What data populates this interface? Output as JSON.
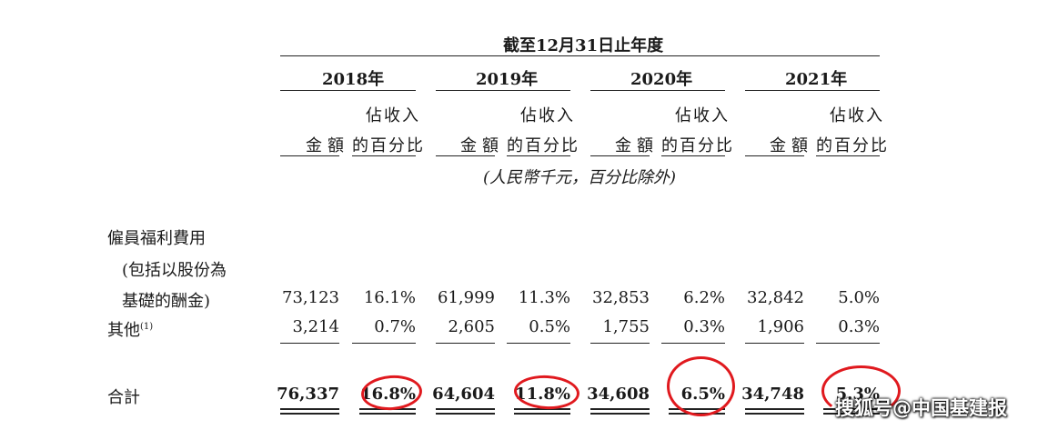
{
  "header": {
    "period_title": "截至12月31日止年度",
    "years": [
      "2018年",
      "2019年",
      "2020年",
      "2021年"
    ],
    "col_amount": "金額",
    "col_pct_line1": "佔收入",
    "col_pct_line2": "的百分比",
    "unit_note": "(人民幣千元，百分比除外)"
  },
  "rows": {
    "employee_label_1": "僱員福利費用",
    "employee_label_2": "(包括以股份為",
    "employee_label_3": "基礎的酬金)",
    "other_label": "其他",
    "other_footnote": "(1)",
    "total_label": "合計"
  },
  "values": {
    "employee": [
      "73,123",
      "16.1%",
      "61,999",
      "11.3%",
      "32,853",
      "6.2%",
      "32,842",
      "5.0%"
    ],
    "other": [
      "3,214",
      "0.7%",
      "2,605",
      "0.5%",
      "1,755",
      "0.3%",
      "1,906",
      "0.3%"
    ],
    "total": [
      "76,337",
      "16.8%",
      "64,604",
      "11.8%",
      "34,608",
      "6.5%",
      "34,748",
      "5.3%"
    ]
  },
  "watermark": "搜狐号@中国基建报",
  "colors": {
    "circle": "#e0191e"
  }
}
